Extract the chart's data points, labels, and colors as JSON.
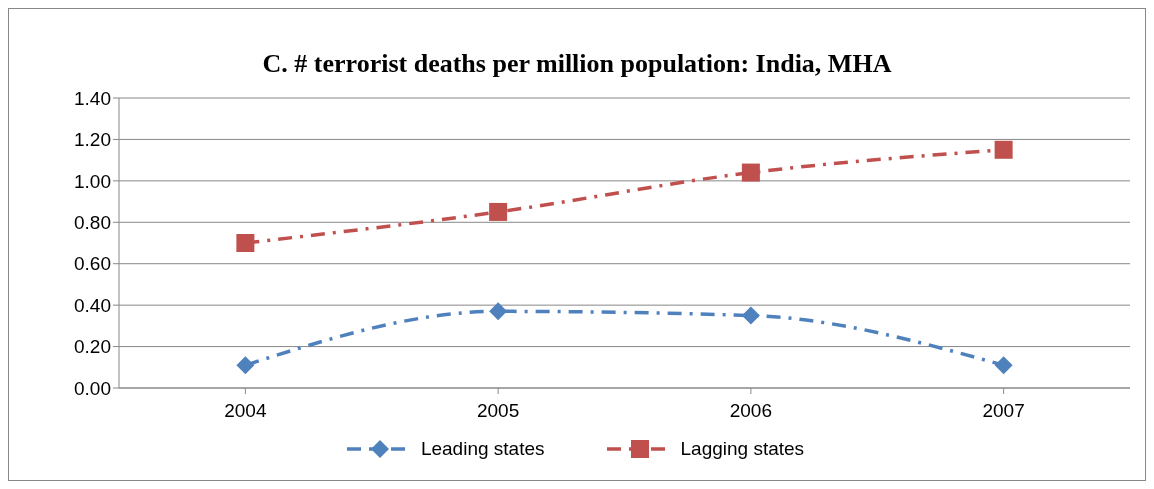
{
  "chart_data": {
    "type": "line",
    "title": "C. # terrorist deaths per million population: India, MHA",
    "categories": [
      "2004",
      "2005",
      "2006",
      "2007"
    ],
    "series": [
      {
        "name": "Leading states",
        "color": "#4f81bd",
        "marker": "diamond",
        "values": [
          0.11,
          0.37,
          0.35,
          0.11
        ]
      },
      {
        "name": "Lagging states",
        "color": "#c0504d",
        "marker": "square",
        "values": [
          0.7,
          0.85,
          1.04,
          1.15
        ]
      }
    ],
    "ylim": [
      0,
      1.4
    ],
    "yticks": [
      {
        "value": 0,
        "label": "0.00"
      },
      {
        "value": 0.2,
        "label": "0.20"
      },
      {
        "value": 0.4,
        "label": "0.40"
      },
      {
        "value": 0.6,
        "label": "0.60"
      },
      {
        "value": 0.8,
        "label": "0.80"
      },
      {
        "value": 1,
        "label": "1.00"
      },
      {
        "value": 1.2,
        "label": "1.20"
      },
      {
        "value": 1.4,
        "label": "1.40"
      }
    ],
    "grid": "y",
    "legend": "bottom",
    "line_style": "dashed"
  }
}
